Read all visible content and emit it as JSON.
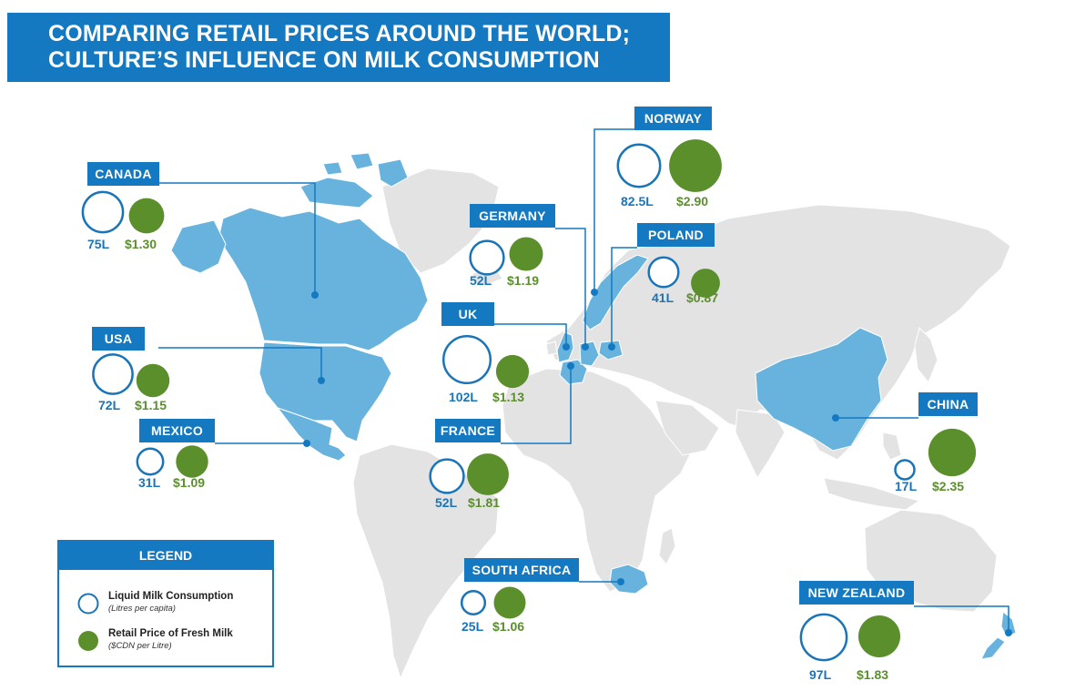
{
  "title": {
    "line1": "COMPARING RETAIL PRICES AROUND THE WORLD;",
    "line2": "CULTURE’S INFLUENCE ON MILK CONSUMPTION"
  },
  "colors": {
    "label_blue": "#1479c1",
    "highlight_fill": "#68b3de",
    "land_grey": "#e3e3e3",
    "consumption_stroke": "#1a75b8",
    "price_fill": "#5b8f2c"
  },
  "countries": [
    {
      "id": "canada",
      "label": "CANADA",
      "consumption": 75,
      "consumption_label": "75L",
      "price": 1.3,
      "price_label": "$1.30"
    },
    {
      "id": "usa",
      "label": "USA",
      "consumption": 72,
      "consumption_label": "72L",
      "price": 1.15,
      "price_label": "$1.15"
    },
    {
      "id": "mexico",
      "label": "MEXICO",
      "consumption": 31,
      "consumption_label": "31L",
      "price": 1.09,
      "price_label": "$1.09"
    },
    {
      "id": "germany",
      "label": "GERMANY",
      "consumption": 52,
      "consumption_label": "52L",
      "price": 1.19,
      "price_label": "$1.19"
    },
    {
      "id": "uk",
      "label": "UK",
      "consumption": 102,
      "consumption_label": "102L",
      "price": 1.13,
      "price_label": "$1.13"
    },
    {
      "id": "france",
      "label": "FRANCE",
      "consumption": 52,
      "consumption_label": "52L",
      "price": 1.81,
      "price_label": "$1.81"
    },
    {
      "id": "norway",
      "label": "NORWAY",
      "consumption": 82.5,
      "consumption_label": "82.5L",
      "price": 2.9,
      "price_label": "$2.90"
    },
    {
      "id": "poland",
      "label": "POLAND",
      "consumption": 41,
      "consumption_label": "41L",
      "price": 0.87,
      "price_label": "$0.87"
    },
    {
      "id": "china",
      "label": "CHINA",
      "consumption": 17,
      "consumption_label": "17L",
      "price": 2.35,
      "price_label": "$2.35"
    },
    {
      "id": "south_africa",
      "label": "SOUTH AFRICA",
      "consumption": 25,
      "consumption_label": "25L",
      "price": 1.06,
      "price_label": "$1.06"
    },
    {
      "id": "new_zealand",
      "label": "NEW ZEALAND",
      "consumption": 97,
      "consumption_label": "97L",
      "price": 1.83,
      "price_label": "$1.83"
    }
  ],
  "legend": {
    "heading": "LEGEND",
    "consumption_title": "Liquid Milk Consumption",
    "consumption_unit": "(Litres per capita)",
    "price_title": "Retail Price of Fresh Milk",
    "price_unit": "($CDN per Litre)"
  }
}
